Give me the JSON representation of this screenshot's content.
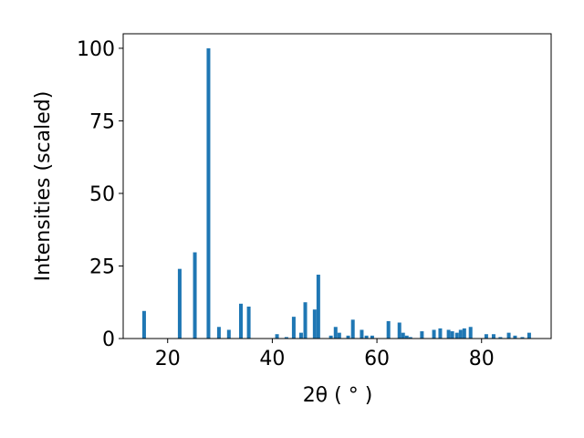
{
  "chart_data": {
    "type": "bar",
    "xlabel": "2θ ( ° )",
    "ylabel": "Intensities (scaled)",
    "x": [
      15.5,
      22.3,
      25.2,
      27.8,
      29.8,
      31.7,
      34.0,
      35.5,
      40.9,
      42.7,
      44.1,
      45.5,
      46.3,
      48.1,
      48.8,
      51.2,
      52.1,
      52.8,
      54.5,
      55.4,
      57.1,
      58.0,
      59.1,
      62.2,
      64.3,
      65.0,
      65.7,
      66.4,
      68.6,
      70.9,
      72.1,
      73.7,
      74.4,
      75.3,
      76.0,
      76.7,
      77.9,
      80.9,
      82.3,
      83.6,
      85.2,
      86.4,
      87.8,
      89.1
    ],
    "values": [
      9.5,
      24,
      29.7,
      100,
      4,
      3,
      12,
      11,
      1.5,
      0.5,
      7.5,
      2,
      12.5,
      10,
      22,
      1,
      4,
      2,
      1,
      6.5,
      3,
      1,
      1,
      6,
      5.5,
      2,
      1,
      0.5,
      2.5,
      3,
      3.5,
      3,
      2.5,
      2,
      3,
      3.5,
      4,
      1.5,
      1.5,
      0.5,
      2,
      1,
      0.5,
      2
    ],
    "color": "#1f77b4",
    "xlim": [
      11.5,
      93.3
    ],
    "xticks": [
      20,
      40,
      60,
      80
    ],
    "ylim": [
      0,
      105
    ],
    "yticks": [
      0,
      25,
      50,
      75,
      100
    ]
  }
}
